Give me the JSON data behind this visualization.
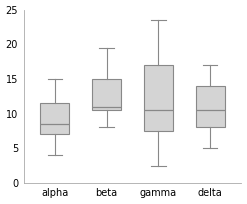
{
  "categories": [
    "alpha",
    "beta",
    "gamma",
    "delta"
  ],
  "boxes": [
    {
      "whislo": 4.0,
      "q1": 7.0,
      "med": 8.5,
      "q3": 11.5,
      "whishi": 15.0
    },
    {
      "whislo": 8.0,
      "q1": 10.5,
      "med": 11.0,
      "q3": 15.0,
      "whishi": 19.5
    },
    {
      "whislo": 2.5,
      "q1": 7.5,
      "med": 10.5,
      "q3": 17.0,
      "whishi": 23.5
    },
    {
      "whislo": 5.0,
      "q1": 8.0,
      "med": 10.5,
      "q3": 14.0,
      "whishi": 17.0
    }
  ],
  "ylim": [
    0,
    25
  ],
  "yticks": [
    0,
    5,
    10,
    15,
    20,
    25
  ],
  "box_facecolor": "#d4d4d4",
  "box_edgecolor": "#888888",
  "median_color": "#888888",
  "whisker_color": "#888888",
  "cap_color": "#888888",
  "background_color": "#ffffff",
  "tick_labelsize": 7,
  "box_width": 0.55,
  "figsize": [
    2.47,
    2.04
  ],
  "dpi": 100
}
